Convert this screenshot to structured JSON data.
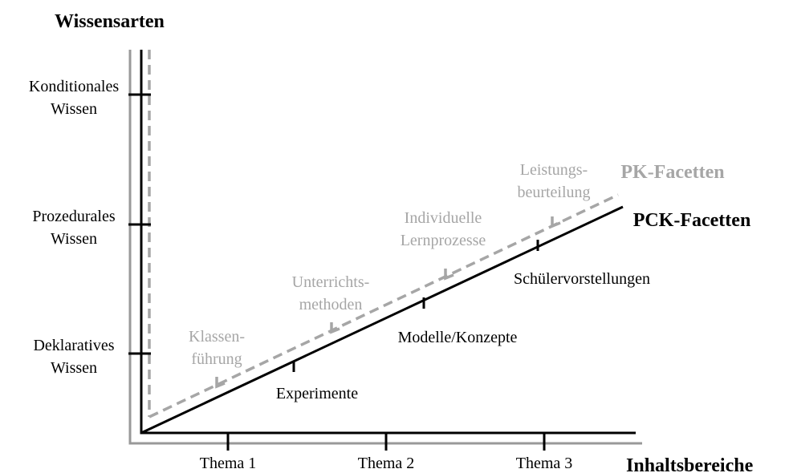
{
  "title": "Wissensarten",
  "y_axis": {
    "levels": [
      [
        "Konditionales",
        "Wissen"
      ],
      [
        "Prozedurales",
        "Wissen"
      ],
      [
        "Deklaratives",
        "Wissen"
      ]
    ]
  },
  "x_axis": {
    "label": "Inhaltsbereiche",
    "topics": [
      "Thema 1",
      "Thema 2",
      "Thema 3"
    ]
  },
  "pck": {
    "label": "PCK-Facetten",
    "facets": [
      "Experimente",
      "Modelle/Konzepte",
      "Schülervorstellungen"
    ]
  },
  "pk": {
    "label": "PK-Facetten",
    "facets": [
      [
        "Klassen-",
        "führung"
      ],
      [
        "Unterrichts-",
        "methoden"
      ],
      [
        "Individuelle",
        "Lernprozesse"
      ],
      [
        "Leistungs-",
        "beurteilung"
      ]
    ]
  }
}
